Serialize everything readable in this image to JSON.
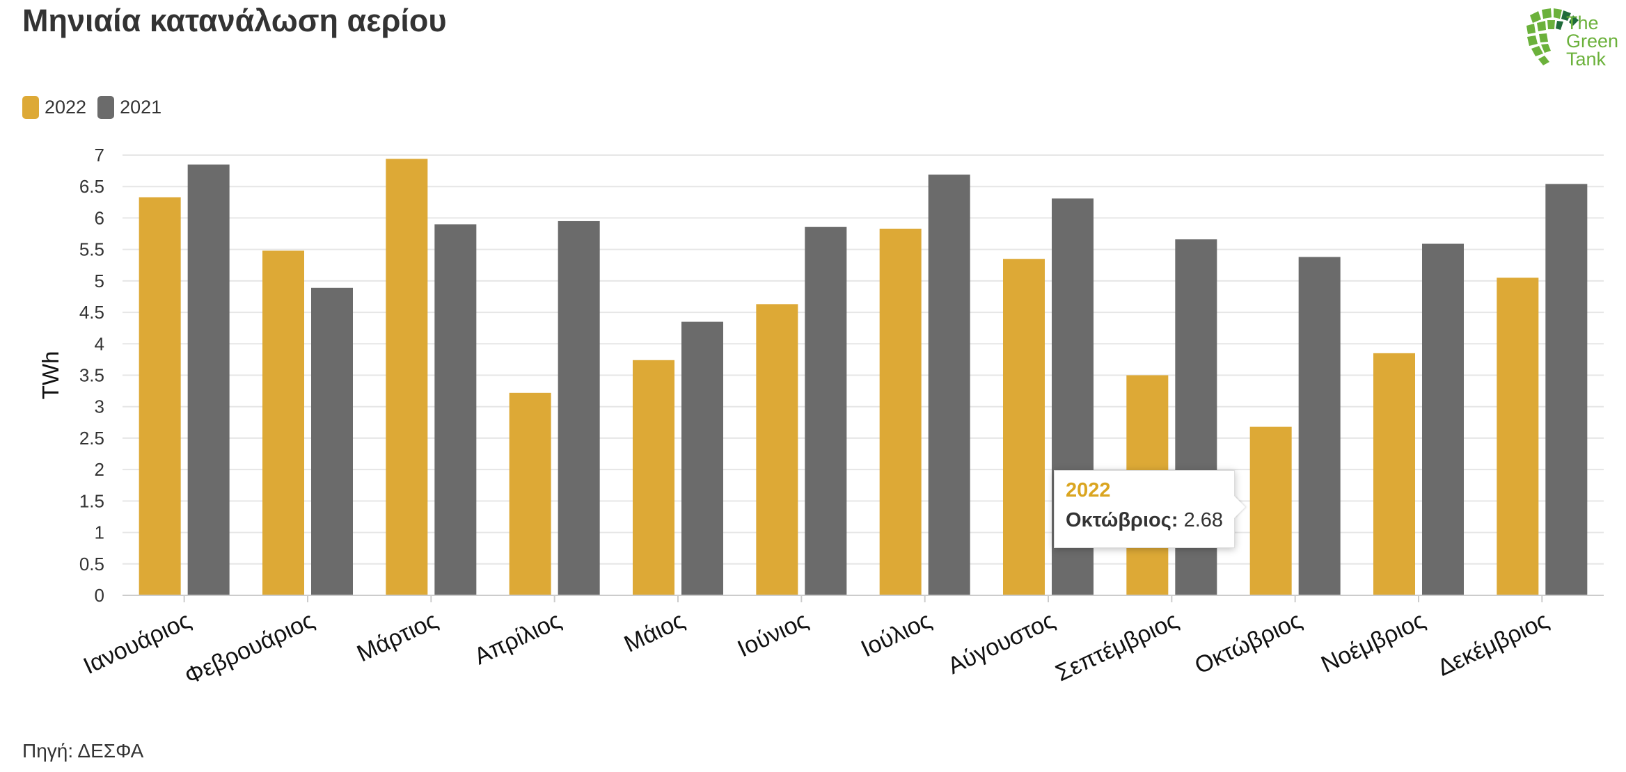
{
  "title": "Μηνιαία κατανάλωση αερίου",
  "source": "Πηγή: ΔΕΣΦΑ",
  "logo": {
    "line1": "The",
    "line2": "Green",
    "line3": "Tank",
    "color": "#6BB13B",
    "dark": "#1F6B3A"
  },
  "colors": {
    "2022": "#DDA936",
    "2021": "#6B6B6B",
    "grid": "#E6E6E6",
    "text": "#333333"
  },
  "legend": [
    {
      "label": "2022",
      "color": "#DDA936"
    },
    {
      "label": "2021",
      "color": "#6B6B6B"
    }
  ],
  "tooltip": {
    "series": "2022",
    "category": "Οκτώβριος:",
    "value": "2.68"
  },
  "chart_data": {
    "type": "bar",
    "ylabel": "TWh",
    "xlabel": "",
    "ylim": [
      0,
      7
    ],
    "yticks": [
      "0",
      "0.5",
      "1",
      "1.5",
      "2",
      "2.5",
      "3",
      "3.5",
      "4",
      "4.5",
      "5",
      "5.5",
      "6",
      "6.5",
      "7"
    ],
    "grid": true,
    "legend_position": "top-left",
    "categories": [
      "Ιανουάριος",
      "Φεβρουάριος",
      "Μάρτιος",
      "Απρίλιος",
      "Μάιος",
      "Ιούνιος",
      "Ιούλιος",
      "Αύγουστος",
      "Σεπτέμβριος",
      "Οκτώβριος",
      "Νοέμβριος",
      "Δεκέμβριος"
    ],
    "series": [
      {
        "name": "2022",
        "color": "#DDA936",
        "values": [
          6.33,
          5.48,
          6.94,
          3.22,
          3.74,
          4.63,
          5.83,
          5.35,
          3.5,
          2.68,
          3.85,
          5.05
        ]
      },
      {
        "name": "2021",
        "color": "#6B6B6B",
        "values": [
          6.85,
          4.89,
          5.9,
          5.95,
          4.35,
          5.86,
          6.69,
          6.31,
          5.66,
          5.38,
          5.59,
          6.54
        ]
      }
    ]
  }
}
